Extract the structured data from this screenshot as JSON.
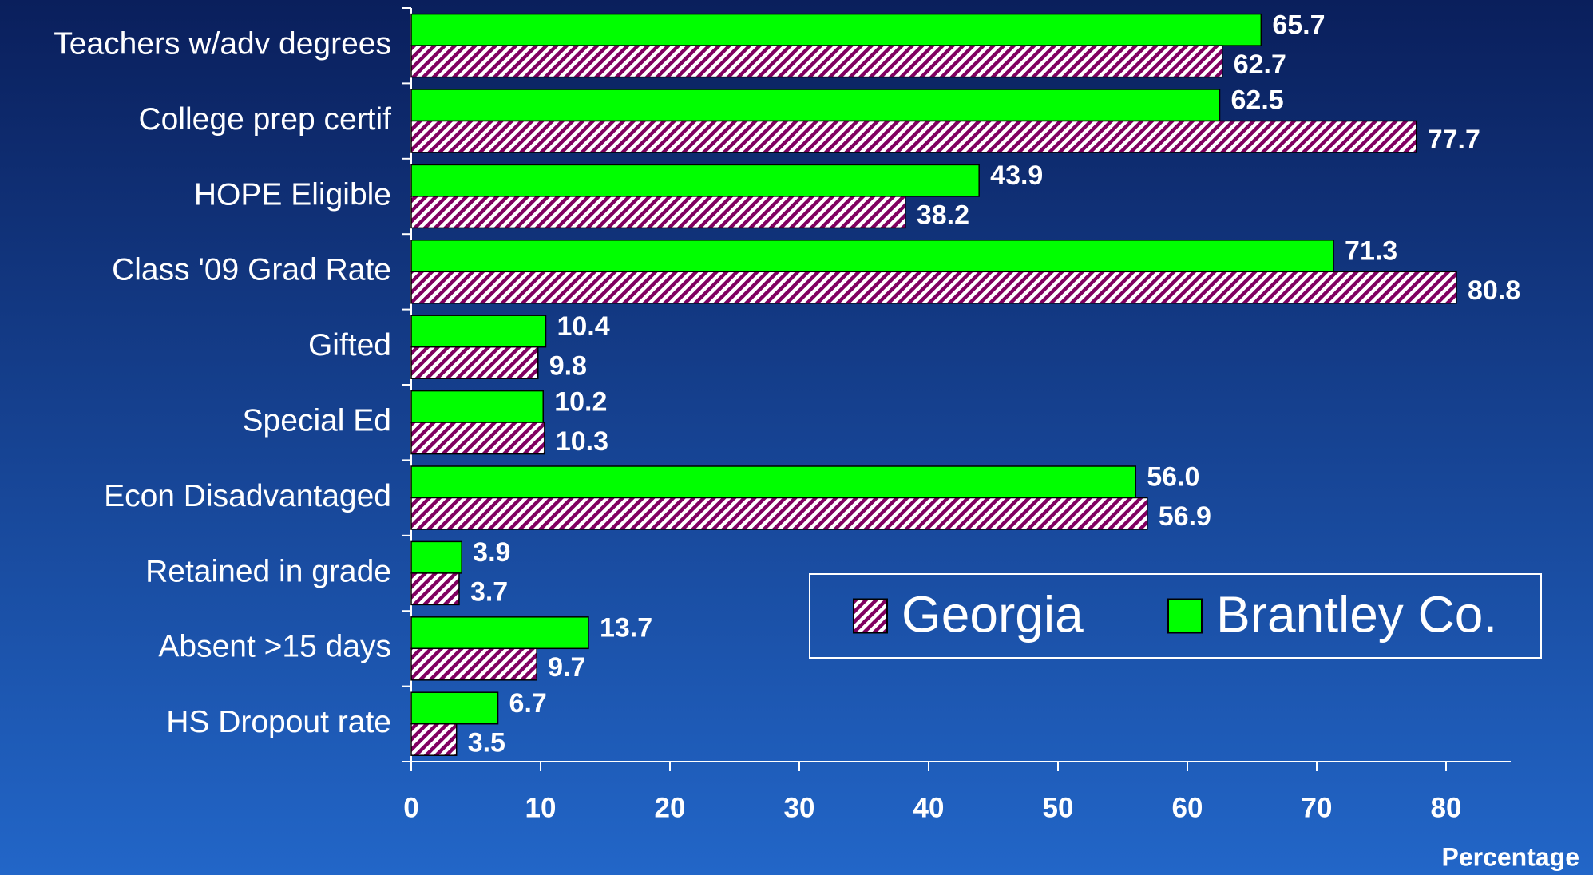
{
  "chart_data": {
    "type": "bar",
    "orientation": "horizontal",
    "categories": [
      "Teachers w/adv degrees",
      "College prep certif",
      "HOPE Eligible",
      "Class '09 Grad Rate",
      "Gifted",
      "Special Ed",
      "Econ Disadvantaged",
      "Retained in grade",
      "Absent >15 days",
      "HS Dropout rate"
    ],
    "series": [
      {
        "name": "Brantley Co.",
        "color": "#00ff00",
        "values": [
          65.7,
          62.5,
          43.9,
          71.3,
          10.4,
          10.2,
          56.0,
          3.9,
          13.7,
          6.7
        ],
        "value_labels": [
          "65.7",
          "62.5",
          "43.9",
          "71.3",
          "10.4",
          "10.2",
          "56.0",
          "3.9",
          "13.7",
          "6.7"
        ]
      },
      {
        "name": "Georgia",
        "color": "#800060",
        "hatch": true,
        "values": [
          62.7,
          77.7,
          38.2,
          80.8,
          9.8,
          10.3,
          56.9,
          3.7,
          9.7,
          3.5
        ],
        "value_labels": [
          "62.7",
          "77.7",
          "38.2",
          "80.8",
          "9.8",
          "10.3",
          "56.9",
          "3.7",
          "9.7",
          "3.5"
        ]
      }
    ],
    "xlabel": "Percentage",
    "xlim": [
      0,
      85
    ],
    "xticks": [
      0,
      10,
      20,
      30,
      40,
      50,
      60,
      70,
      80
    ],
    "legend": "lower right",
    "grid": false
  }
}
